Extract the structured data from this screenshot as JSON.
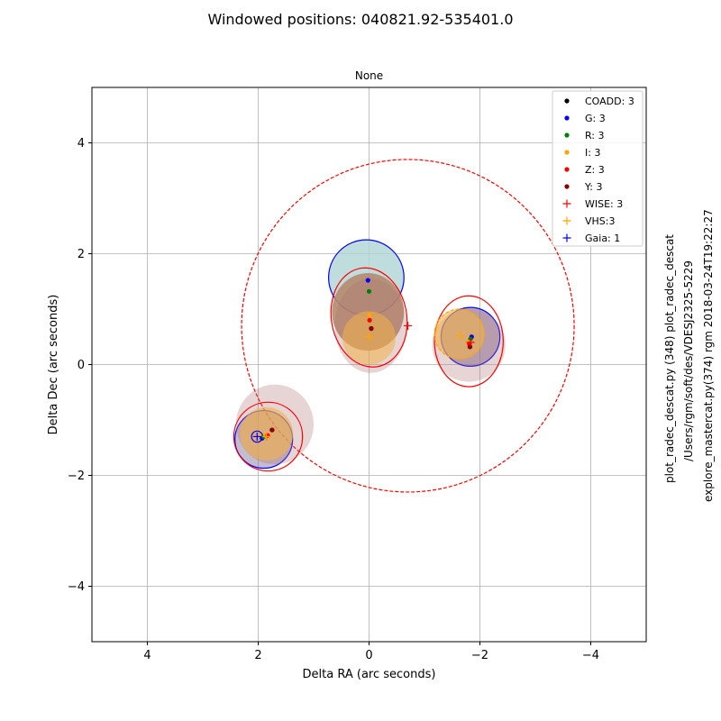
{
  "figure": {
    "suptitle": "Windowed positions: 040821.92-535401.0",
    "side_notes": [
      "plot_radec_descat.py (348) plot_radec_descat",
      "/Users/rgm/soft/des/VDESJ2325-5229",
      "explore_mastercat.py(374) rgm 2018-03-24T19:22:27"
    ]
  },
  "colors": {
    "COADD": "#000000",
    "G": "#0000ff",
    "R": "#008000",
    "I": "#ffa500",
    "Z": "#ff0000",
    "Y": "#8b0000",
    "WISE": "#ff0000",
    "VHS": "#ffa500",
    "Gaia": "#0000ff"
  },
  "chart_data": {
    "type": "scatter",
    "title": "None",
    "xlabel": "Delta RA (arc seconds)",
    "ylabel": "Delta Dec (arc seconds)",
    "xlim": [
      5,
      -5
    ],
    "ylim": [
      -5,
      5
    ],
    "xticks": [
      4,
      2,
      0,
      -2,
      -4
    ],
    "yticks": [
      4,
      2,
      0,
      -2,
      -4
    ],
    "xtick_labels": [
      "4",
      "2",
      "0",
      "−2",
      "−4"
    ],
    "ytick_labels": [
      "4",
      "2",
      "0",
      "−2",
      "−4"
    ],
    "grid": true,
    "legend_position": "top-right",
    "series": [
      {
        "name": "COADD: 3",
        "marker": "dot",
        "color_key": "COADD",
        "points": [
          [
            -0.04,
            0.65
          ],
          [
            -1.82,
            0.32
          ],
          [
            1.75,
            -1.18
          ]
        ]
      },
      {
        "name": "G: 3",
        "marker": "dot",
        "color_key": "G",
        "points": [
          [
            0.02,
            1.52
          ],
          [
            -1.85,
            0.5
          ],
          [
            1.93,
            -1.33
          ]
        ]
      },
      {
        "name": "R: 3",
        "marker": "dot",
        "color_key": "R",
        "points": [
          [
            0.0,
            1.32
          ],
          [
            -1.83,
            0.46
          ],
          [
            1.9,
            -1.3
          ]
        ]
      },
      {
        "name": "I: 3",
        "marker": "dot",
        "color_key": "I",
        "points": [
          [
            -0.01,
            0.9
          ],
          [
            -1.8,
            0.4
          ],
          [
            1.87,
            -1.28
          ]
        ]
      },
      {
        "name": "Z: 3",
        "marker": "dot",
        "color_key": "Z",
        "points": [
          [
            -0.01,
            0.8
          ],
          [
            -1.81,
            0.37
          ],
          [
            1.83,
            -1.28
          ]
        ]
      },
      {
        "name": "Y: 3",
        "marker": "dot",
        "color_key": "Y",
        "points": [
          [
            -0.04,
            0.65
          ],
          [
            -1.82,
            0.32
          ],
          [
            1.75,
            -1.18
          ]
        ]
      },
      {
        "name": "WISE: 3",
        "marker": "plus",
        "color_key": "WISE",
        "points": [
          [
            -0.7,
            0.7
          ],
          [
            -1.83,
            0.4
          ],
          [
            1.85,
            -1.3
          ]
        ]
      },
      {
        "name": "VHS:3",
        "marker": "plus",
        "color_key": "VHS",
        "points": [
          [
            0.0,
            0.5
          ],
          [
            -1.65,
            0.52
          ],
          [
            1.85,
            -1.3
          ]
        ]
      },
      {
        "name": "Gaia: 1",
        "marker": "plus",
        "color_key": "Gaia",
        "points": [
          [
            2.02,
            -1.3
          ]
        ]
      }
    ],
    "circles": [
      {
        "x": -0.7,
        "y": 0.7,
        "r": 3.0,
        "color_key": "WISE",
        "style": "dashed",
        "fill": "none"
      },
      {
        "x": 0.05,
        "y": 1.57,
        "rx": 0.68,
        "ry": 0.68,
        "color_key": "G",
        "style": "solid",
        "fill": "#b0d4d4",
        "fill_opacity": 0.8
      },
      {
        "x": 0.02,
        "y": 0.95,
        "rx": 0.65,
        "ry": 0.7,
        "color_key": "Y",
        "style": "none",
        "fill": "#b58a6e",
        "fill_opacity": 0.9
      },
      {
        "x": -0.03,
        "y": 0.7,
        "rx": 0.65,
        "ry": 0.85,
        "color_key": "Y",
        "style": "none",
        "fill": "#b07070",
        "fill_opacity": 0.3
      },
      {
        "x": 0.0,
        "y": 0.85,
        "rx": 0.68,
        "ry": 0.9,
        "color_key": "Z",
        "style": "solid",
        "fill": "none",
        "rotate": -10
      },
      {
        "x": 0.0,
        "y": 0.48,
        "rx": 0.48,
        "ry": 0.48,
        "color_key": "I",
        "style": "none",
        "fill": "#f2b24a",
        "fill_opacity": 0.55
      },
      {
        "x": -1.83,
        "y": 0.5,
        "rx": 0.53,
        "ry": 0.53,
        "color_key": "G",
        "style": "solid",
        "fill": "#8a7aa0",
        "fill_opacity": 0.6
      },
      {
        "x": -1.8,
        "y": 0.35,
        "rx": 0.66,
        "ry": 0.66,
        "color_key": "Y",
        "style": "none",
        "fill": "#b07070",
        "fill_opacity": 0.3
      },
      {
        "x": -1.8,
        "y": 0.42,
        "rx": 0.62,
        "ry": 0.82,
        "color_key": "Z",
        "style": "solid",
        "fill": "none"
      },
      {
        "x": -1.63,
        "y": 0.55,
        "rx": 0.45,
        "ry": 0.45,
        "color_key": "I",
        "style": "none",
        "fill": "#f2b24a",
        "fill_opacity": 0.6
      },
      {
        "x": -1.63,
        "y": 0.55,
        "rx": 0.45,
        "ry": 0.45,
        "color_key": "I",
        "style": "dashed",
        "fill": "none"
      },
      {
        "x": 1.9,
        "y": -1.35,
        "rx": 0.52,
        "ry": 0.52,
        "color_key": "G",
        "style": "solid",
        "fill": "#8a7aa0",
        "fill_opacity": 0.5
      },
      {
        "x": 1.7,
        "y": -1.08,
        "rx": 0.7,
        "ry": 0.72,
        "color_key": "Y",
        "style": "none",
        "fill": "#b07070",
        "fill_opacity": 0.3
      },
      {
        "x": 1.82,
        "y": -1.3,
        "rx": 0.62,
        "ry": 0.62,
        "color_key": "Z",
        "style": "solid",
        "fill": "none"
      },
      {
        "x": 1.85,
        "y": -1.25,
        "rx": 0.48,
        "ry": 0.48,
        "color_key": "I",
        "style": "none",
        "fill": "#f2b24a",
        "fill_opacity": 0.6
      },
      {
        "x": 2.02,
        "y": -1.3,
        "rx": 0.1,
        "ry": 0.1,
        "color_key": "Gaia",
        "style": "solid",
        "fill": "none"
      }
    ]
  }
}
